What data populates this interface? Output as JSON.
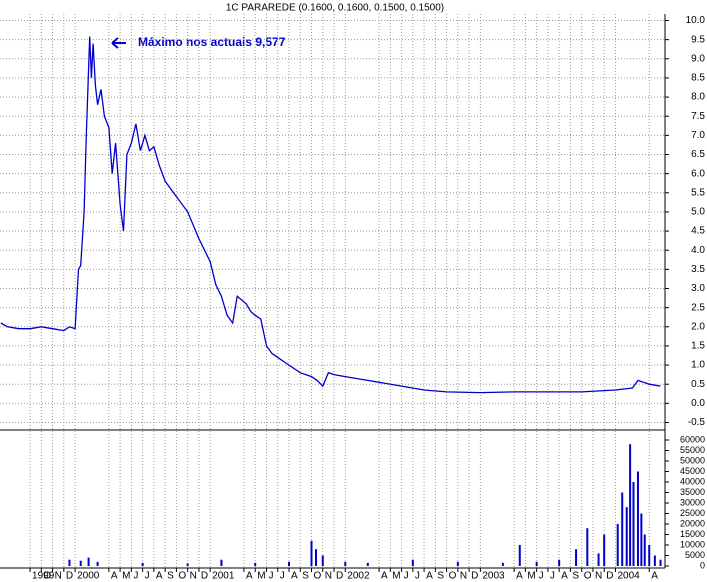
{
  "chart_data": [
    {
      "type": "line",
      "title": "1C PARAREDE (0.1600, 0.1600, 0.1500, 0.1500)",
      "annotation": "Máximo nos actuais 9,577",
      "color": "#0000cc",
      "grid": true,
      "xlim": [
        -2.67,
        56.4
      ],
      "xticks": [
        {
          "value": 0,
          "label": "1999"
        },
        {
          "value": 1,
          "label": "O"
        },
        {
          "value": 2,
          "label": "N"
        },
        {
          "value": 3,
          "label": "D"
        },
        {
          "value": 4,
          "label": "2000"
        },
        {
          "value": 7,
          "label": "A"
        },
        {
          "value": 8,
          "label": "M"
        },
        {
          "value": 9,
          "label": "J"
        },
        {
          "value": 10,
          "label": "J"
        },
        {
          "value": 11,
          "label": "A"
        },
        {
          "value": 12,
          "label": "S"
        },
        {
          "value": 13,
          "label": "O"
        },
        {
          "value": 14,
          "label": "N"
        },
        {
          "value": 15,
          "label": "D"
        },
        {
          "value": 16,
          "label": "2001"
        },
        {
          "value": 19,
          "label": "A"
        },
        {
          "value": 20,
          "label": "M"
        },
        {
          "value": 21,
          "label": "J"
        },
        {
          "value": 22,
          "label": "J"
        },
        {
          "value": 23,
          "label": "A"
        },
        {
          "value": 24,
          "label": "S"
        },
        {
          "value": 25,
          "label": "O"
        },
        {
          "value": 26,
          "label": "N"
        },
        {
          "value": 27,
          "label": "D"
        },
        {
          "value": 28,
          "label": "2002"
        },
        {
          "value": 31,
          "label": "A"
        },
        {
          "value": 32,
          "label": "M"
        },
        {
          "value": 33,
          "label": "J"
        },
        {
          "value": 34,
          "label": "J"
        },
        {
          "value": 35,
          "label": "A"
        },
        {
          "value": 36,
          "label": "S"
        },
        {
          "value": 37,
          "label": "O"
        },
        {
          "value": 38,
          "label": "N"
        },
        {
          "value": 39,
          "label": "D"
        },
        {
          "value": 40,
          "label": "2003"
        },
        {
          "value": 43,
          "label": "A"
        },
        {
          "value": 44,
          "label": "M"
        },
        {
          "value": 45,
          "label": "J"
        },
        {
          "value": 46,
          "label": "J"
        },
        {
          "value": 47,
          "label": "A"
        },
        {
          "value": 48,
          "label": "S"
        },
        {
          "value": 49,
          "label": "O"
        },
        {
          "value": 50,
          "label": "N"
        },
        {
          "value": 51,
          "label": "D"
        },
        {
          "value": 52,
          "label": "2004"
        },
        {
          "value": 55,
          "label": "A"
        }
      ],
      "ylim": [
        -0.5,
        10.0
      ],
      "yticks": [
        {
          "value": 10,
          "label": "10.0"
        },
        {
          "value": 9.5,
          "label": "9.5"
        },
        {
          "value": 9,
          "label": "9.0"
        },
        {
          "value": 8.5,
          "label": "8.5"
        },
        {
          "value": 8,
          "label": "8.0"
        },
        {
          "value": 7.5,
          "label": "7.5"
        },
        {
          "value": 7,
          "label": "7.0"
        },
        {
          "value": 6.5,
          "label": "6.5"
        },
        {
          "value": 6,
          "label": "6.0"
        },
        {
          "value": 5.5,
          "label": "5.5"
        },
        {
          "value": 5,
          "label": "5.0"
        },
        {
          "value": 4.5,
          "label": "4.5"
        },
        {
          "value": 4,
          "label": "4.0"
        },
        {
          "value": 3.5,
          "label": "3.5"
        },
        {
          "value": 3,
          "label": "3.0"
        },
        {
          "value": 2.5,
          "label": "2.5"
        },
        {
          "value": 2,
          "label": "2.0"
        },
        {
          "value": 1.5,
          "label": "1.5"
        },
        {
          "value": 1,
          "label": "1.0"
        },
        {
          "value": 0.5,
          "label": "0.5"
        },
        {
          "value": 0,
          "label": "0.0"
        },
        {
          "value": -0.5,
          "label": "-0.5"
        }
      ],
      "x": [
        -2.6,
        -2,
        -1,
        0,
        1,
        2,
        3,
        3.5,
        4,
        4.3,
        4.5,
        4.8,
        5.0,
        5.3,
        5.45,
        5.6,
        5.8,
        6.0,
        6.3,
        6.6,
        7,
        7.3,
        7.6,
        8,
        8.3,
        8.6,
        9,
        9.4,
        9.8,
        10.2,
        10.6,
        11,
        11.5,
        12,
        13,
        14,
        15,
        16,
        16.5,
        17,
        17.5,
        18,
        18.4,
        18.8,
        19.2,
        19.6,
        20,
        20.5,
        21,
        21.5,
        22,
        23,
        24,
        25,
        25.5,
        26,
        26.5,
        27,
        28,
        29,
        30,
        31,
        33,
        35,
        37,
        40,
        43,
        46,
        49,
        52,
        53.5,
        54,
        55,
        56
      ],
      "values": [
        2.1,
        2.0,
        1.95,
        1.95,
        2.0,
        1.95,
        1.9,
        2.0,
        1.95,
        3.5,
        3.6,
        5.0,
        7.0,
        9.577,
        8.5,
        9.4,
        8.3,
        7.8,
        8.2,
        7.5,
        7.2,
        6.0,
        6.8,
        5.2,
        4.5,
        6.5,
        6.8,
        7.3,
        6.6,
        7.0,
        6.6,
        6.7,
        6.2,
        5.8,
        5.4,
        5.0,
        4.3,
        3.7,
        3.1,
        2.8,
        2.3,
        2.1,
        2.8,
        2.7,
        2.6,
        2.4,
        2.3,
        2.2,
        1.5,
        1.3,
        1.2,
        1.0,
        0.8,
        0.7,
        0.6,
        0.45,
        0.8,
        0.75,
        0.7,
        0.65,
        0.6,
        0.55,
        0.45,
        0.35,
        0.3,
        0.28,
        0.3,
        0.3,
        0.3,
        0.35,
        0.4,
        0.6,
        0.5,
        0.45
      ]
    },
    {
      "type": "bar",
      "color": "#0000cc",
      "ylim": [
        0,
        60000
      ],
      "yticks": [
        60000,
        55000,
        50000,
        45000,
        40000,
        35000,
        30000,
        25000,
        20000,
        15000,
        10000,
        5000,
        0
      ],
      "x": [
        3.5,
        4.5,
        5.2,
        6,
        10,
        14,
        17,
        20,
        23,
        25,
        25.4,
        26,
        28,
        30,
        34,
        38,
        42,
        43.5,
        45,
        47,
        48.5,
        49.5,
        50.5,
        51,
        52.2,
        52.6,
        53,
        53.3,
        53.6,
        54,
        54.3,
        54.6,
        55,
        55.5,
        56
      ],
      "values": [
        3000,
        2500,
        4000,
        2000,
        1500,
        1200,
        3000,
        1500,
        2000,
        12000,
        8000,
        5000,
        2000,
        1500,
        3000,
        2000,
        1500,
        10000,
        2000,
        3000,
        8000,
        18000,
        6000,
        15000,
        20000,
        35000,
        28000,
        58000,
        40000,
        45000,
        25000,
        15000,
        10000,
        5000,
        3000
      ]
    }
  ]
}
